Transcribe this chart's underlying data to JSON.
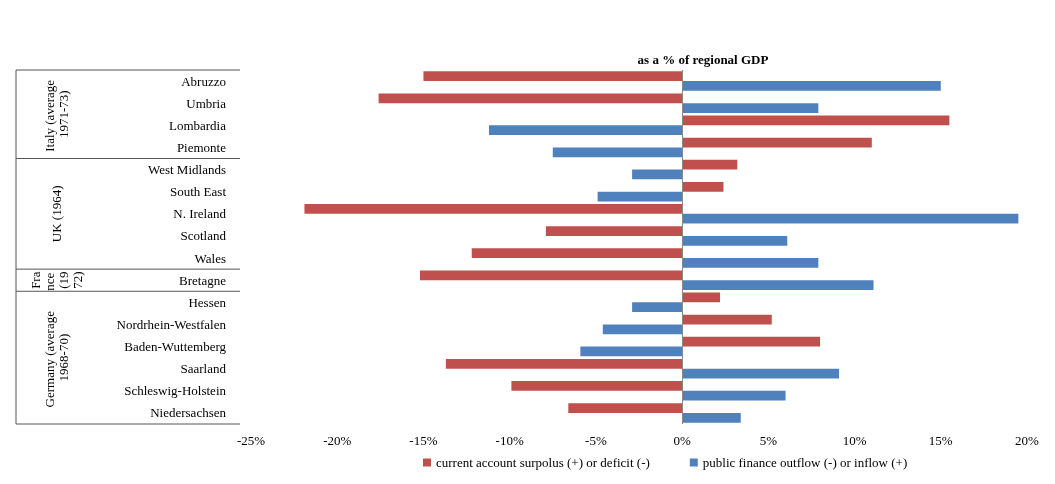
{
  "chart_data": {
    "type": "bar",
    "orientation": "horizontal",
    "title": "as a % of regional GDP",
    "categories": [
      "Abruzzo",
      "Umbria",
      "Lombardia",
      "Piemonte",
      "West Midlands",
      "South East",
      "N. Ireland",
      "Scotland",
      "Wales",
      "Bretagne",
      "Hessen",
      "Nordrhein-Westfalen",
      "Baden-Wuttemberg",
      "Saarland",
      "Schleswig-Holstein",
      "Niedersachsen"
    ],
    "series": [
      {
        "name": "current account surpolus (+) or deficit (-)",
        "color": "#c0504d",
        "values": [
          -15.0,
          -17.6,
          15.5,
          11.0,
          3.2,
          2.4,
          -21.9,
          -7.9,
          -12.2,
          -15.2,
          2.2,
          5.2,
          8.0,
          -13.7,
          -9.9,
          -6.6
        ]
      },
      {
        "name": "public finance outflow (-) or inflow (+)",
        "color": "#4f81bd",
        "values": [
          15.0,
          7.9,
          -11.2,
          -7.5,
          -2.9,
          -4.9,
          19.5,
          6.1,
          7.9,
          11.1,
          -2.9,
          -4.6,
          -5.9,
          9.1,
          6.0,
          3.4
        ]
      }
    ],
    "xlim": [
      -25,
      20
    ],
    "xticks": [
      {
        "value": -25,
        "label": "-25%"
      },
      {
        "value": -20,
        "label": "-20%"
      },
      {
        "value": -15,
        "label": "-15%"
      },
      {
        "value": -10,
        "label": "-10%"
      },
      {
        "value": -5,
        "label": "-5%"
      },
      {
        "value": 0,
        "label": "0%"
      },
      {
        "value": 5,
        "label": "5%"
      },
      {
        "value": 10,
        "label": "10%"
      },
      {
        "value": 15,
        "label": "15%"
      },
      {
        "value": 20,
        "label": "20%"
      }
    ],
    "annotations": [
      "Italy (average 1971-73)",
      "UK (1964)",
      "France (1972)",
      "Germany (average 1968-70)"
    ],
    "ref_lines": [
      {
        "axis": "x",
        "value": 0,
        "color": "#888888"
      }
    ],
    "grid": false,
    "legend": "bottom"
  }
}
